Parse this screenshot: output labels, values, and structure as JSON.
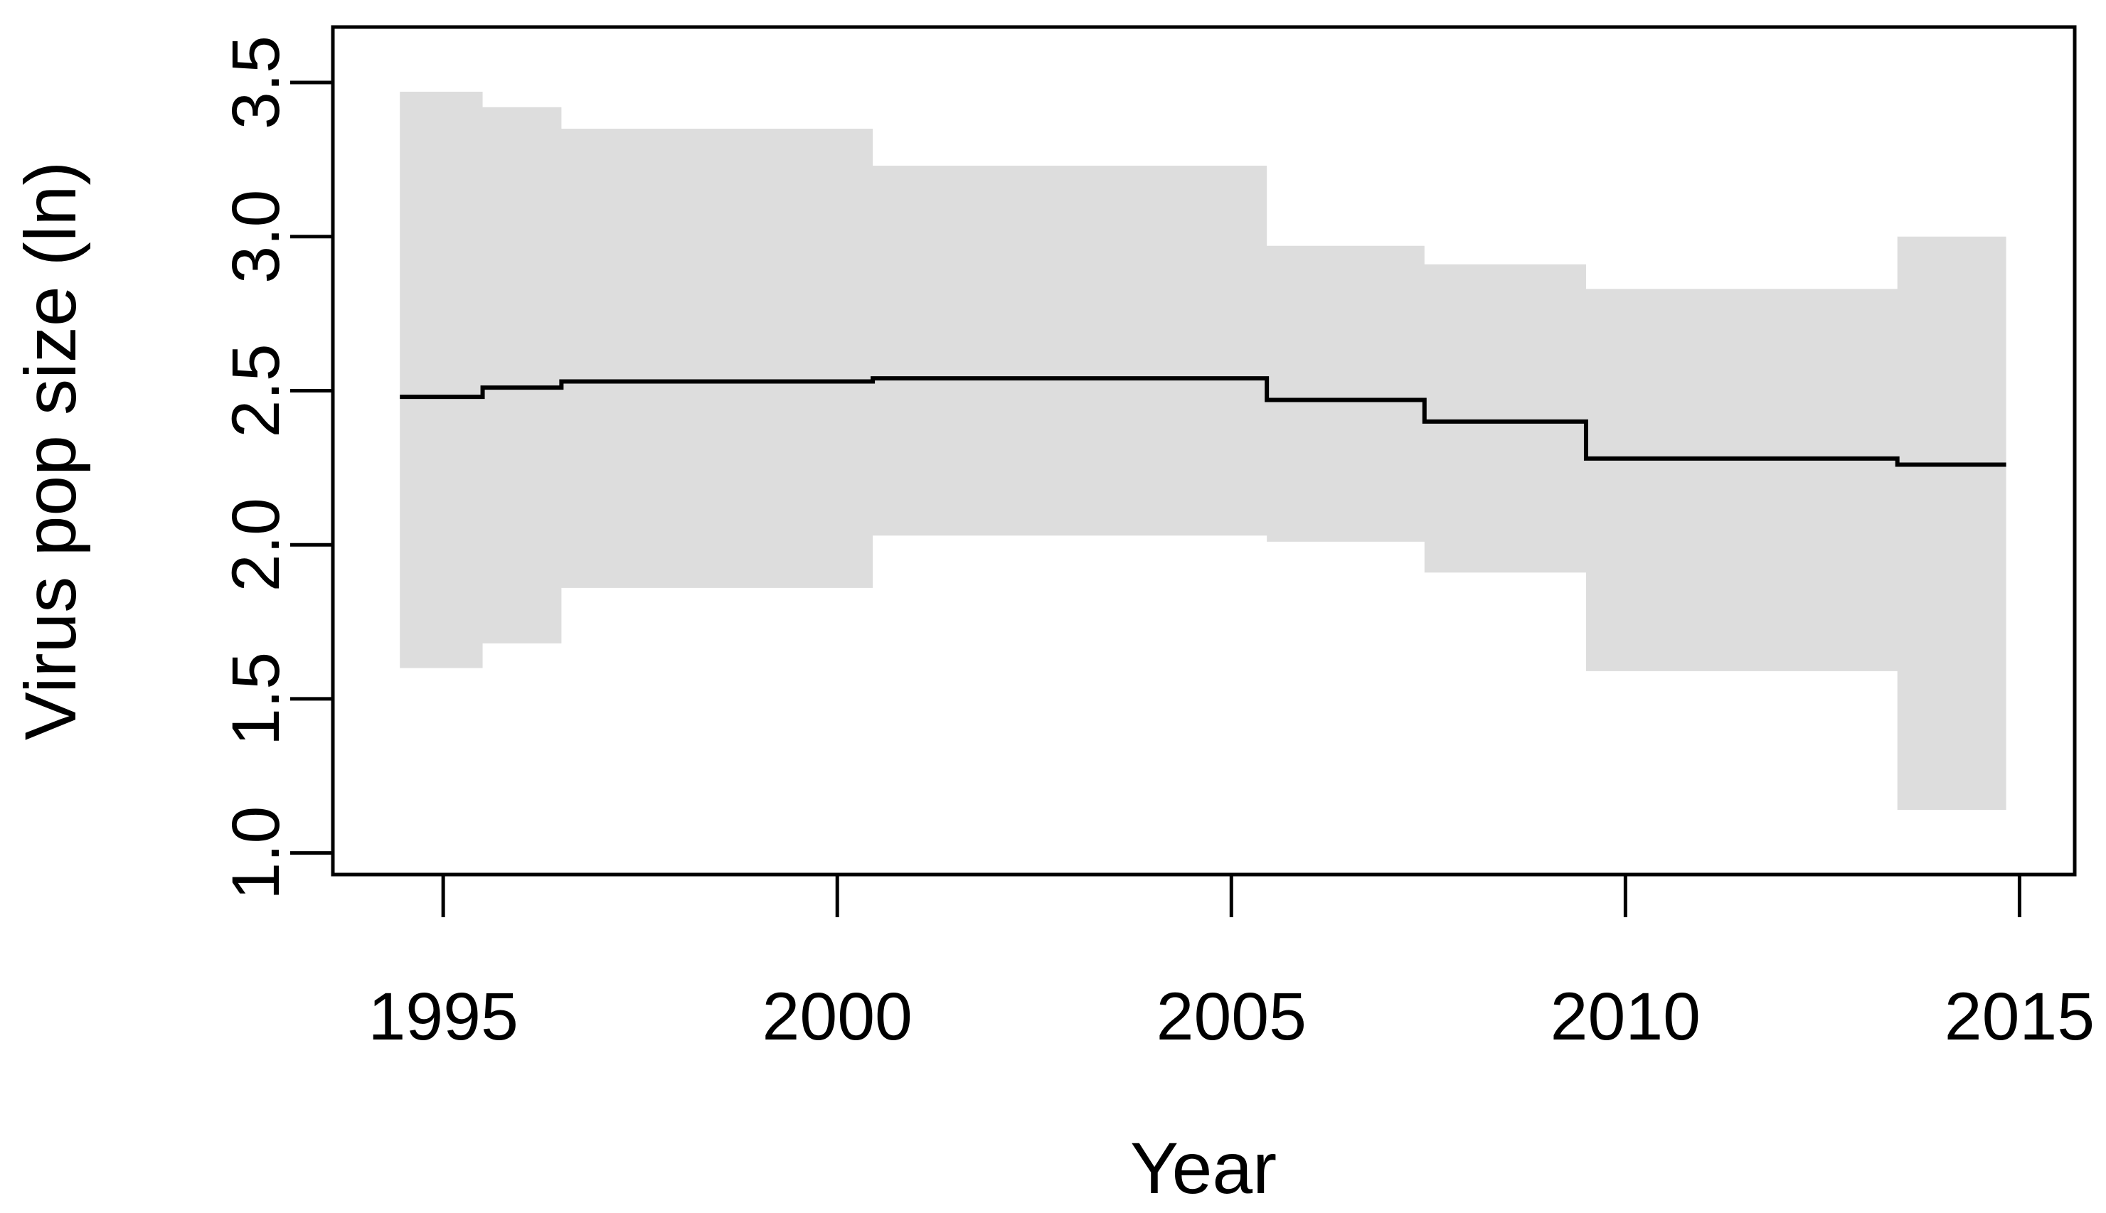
{
  "figure": {
    "background": "#ffffff",
    "foreground": "#000000"
  },
  "chart_data": {
    "type": "line",
    "subtype": "step-function-with-confidence-band",
    "title": "",
    "xlabel": "Year",
    "ylabel": "Virus pop size (ln)",
    "x_ticks": [
      1995,
      2000,
      2005,
      2010,
      2015
    ],
    "x_tick_labels": [
      "1995",
      "2000",
      "2005",
      "2010",
      "2015"
    ],
    "y_ticks": [
      1.0,
      1.5,
      2.0,
      2.5,
      3.0,
      3.5
    ],
    "y_tick_labels": [
      "1.0",
      "1.5",
      "2.0",
      "2.5",
      "3.0",
      "3.5"
    ],
    "xlim": [
      1993.6,
      2015.7
    ],
    "ylim": [
      0.93,
      3.68
    ],
    "grid": false,
    "legend": "none",
    "band_color": "#dddddd",
    "line_color": "#000000",
    "series": [
      {
        "name": "median",
        "style": "solid black step line"
      },
      {
        "name": "confidence-band",
        "style": "light gray stepped region"
      }
    ],
    "intervals": [
      {
        "start": 1994.45,
        "end": 1995.5,
        "median": 2.48,
        "lower": 1.6,
        "upper": 3.47
      },
      {
        "start": 1995.5,
        "end": 1996.5,
        "median": 2.51,
        "lower": 1.68,
        "upper": 3.42
      },
      {
        "start": 1996.5,
        "end": 2000.45,
        "median": 2.53,
        "lower": 1.86,
        "upper": 3.35
      },
      {
        "start": 2000.45,
        "end": 2005.45,
        "median": 2.54,
        "lower": 2.03,
        "upper": 3.23
      },
      {
        "start": 2005.45,
        "end": 2007.45,
        "median": 2.47,
        "lower": 2.01,
        "upper": 2.97
      },
      {
        "start": 2007.45,
        "end": 2009.5,
        "median": 2.4,
        "lower": 1.91,
        "upper": 2.91
      },
      {
        "start": 2009.5,
        "end": 2013.45,
        "median": 2.28,
        "lower": 1.59,
        "upper": 2.83
      },
      {
        "start": 2013.45,
        "end": 2014.83,
        "median": 2.26,
        "lower": 1.14,
        "upper": 3.0
      }
    ]
  }
}
